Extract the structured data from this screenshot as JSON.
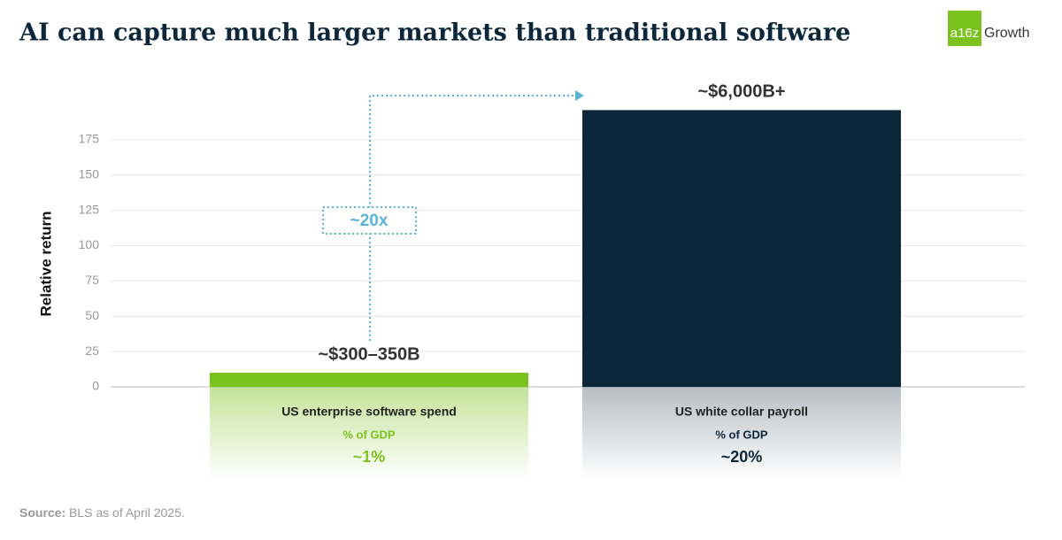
{
  "chart_data": {
    "type": "bar",
    "title": "AI can capture much larger markets than traditional software",
    "logo": {
      "mark": "a16z",
      "text": "Growth"
    },
    "ylabel": "Relative return",
    "categories": [
      "US enterprise software spend",
      "US white collar payroll"
    ],
    "values": [
      10,
      196
    ],
    "colors": [
      "#7cc21e",
      "#0c263a"
    ],
    "bar_labels": [
      "~$300–350B",
      "~$6,000B+"
    ],
    "metric_label": [
      "% of GDP",
      "% of GDP"
    ],
    "metric_values": [
      "~1%",
      "~20%"
    ],
    "annotation": "~20x",
    "ylim": [
      0,
      200
    ],
    "yticks": [
      0,
      25,
      50,
      75,
      100,
      125,
      150,
      175
    ],
    "grid": true,
    "source": {
      "label": "Source:",
      "text": "BLS as of April 2025."
    }
  }
}
